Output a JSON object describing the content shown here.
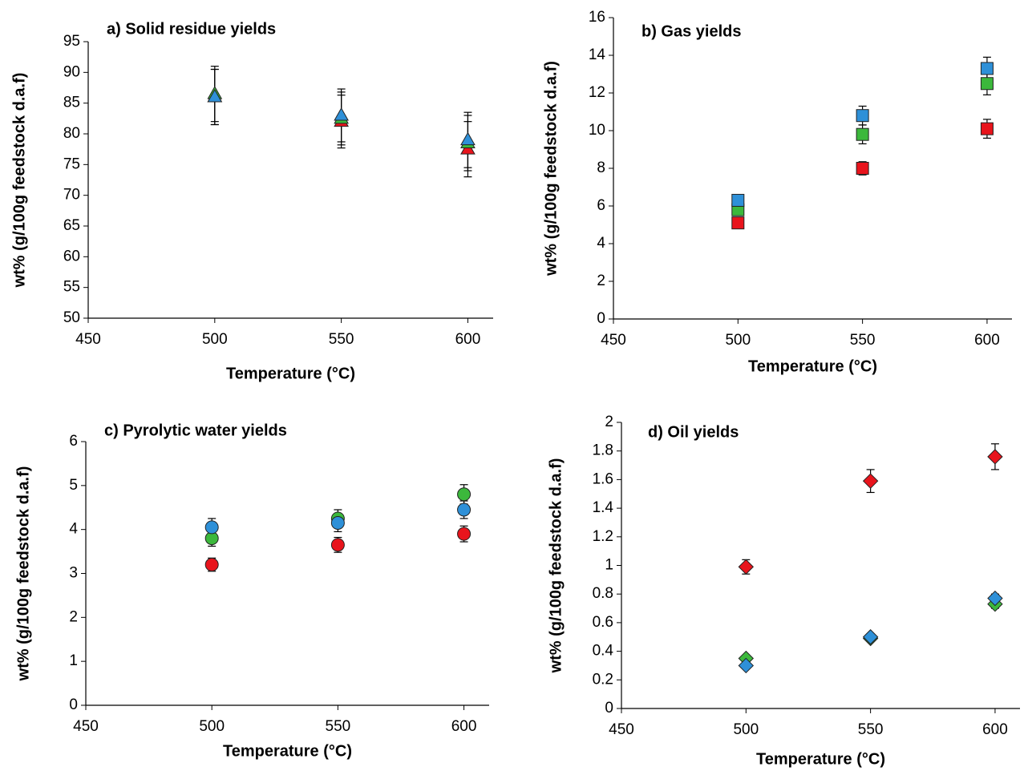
{
  "chart_data": [
    {
      "type": "scatter",
      "title": "a) Solid residue yields",
      "xlabel": "Temperature (°C)",
      "ylabel": "wt% (g/100g feedstock d.a.f)",
      "marker": "triangle",
      "x": [
        500,
        550,
        600
      ],
      "xlim": [
        450,
        610
      ],
      "xticks": [
        450,
        500,
        550,
        600
      ],
      "ylim": [
        50,
        95
      ],
      "yticks": [
        50,
        55,
        60,
        65,
        70,
        75,
        80,
        85,
        90,
        95
      ],
      "series": [
        {
          "color": "#e8141c",
          "values": [
            86,
            82,
            77.5
          ],
          "errors": [
            4.5,
            4.3,
            4.5
          ]
        },
        {
          "color": "#3cb83c",
          "values": [
            86.5,
            82.5,
            78.5
          ],
          "errors": [
            4.5,
            4.3,
            4.5
          ]
        },
        {
          "color": "#2e90d8",
          "values": [
            86,
            83,
            79
          ],
          "errors": [
            4.5,
            4.3,
            4.5
          ]
        }
      ]
    },
    {
      "type": "scatter",
      "title": "b) Gas yields",
      "xlabel": "Temperature (°C)",
      "ylabel": "wt% (g/100g feedstock d.a.f)",
      "marker": "square",
      "x": [
        500,
        550,
        600
      ],
      "xlim": [
        450,
        610
      ],
      "xticks": [
        450,
        500,
        550,
        600
      ],
      "ylim": [
        0,
        16
      ],
      "yticks": [
        0,
        2,
        4,
        6,
        8,
        10,
        12,
        14,
        16
      ],
      "series": [
        {
          "color": "#e8141c",
          "values": [
            5.1,
            8.0,
            10.1
          ],
          "errors": [
            0.2,
            0.35,
            0.5
          ]
        },
        {
          "color": "#3cb83c",
          "values": [
            5.8,
            9.8,
            12.5
          ],
          "errors": [
            0.3,
            0.5,
            0.6
          ]
        },
        {
          "color": "#2e90d8",
          "values": [
            6.3,
            10.8,
            13.3
          ],
          "errors": [
            0.3,
            0.5,
            0.6
          ]
        }
      ]
    },
    {
      "type": "scatter",
      "title": "c) Pyrolytic water yields",
      "xlabel": "Temperature (°C)",
      "ylabel": "wt% (g/100g feedstock d.a.f)",
      "marker": "circle",
      "x": [
        500,
        550,
        600
      ],
      "xlim": [
        450,
        610
      ],
      "xticks": [
        450,
        500,
        550,
        600
      ],
      "ylim": [
        0,
        6
      ],
      "yticks": [
        0,
        1,
        2,
        3,
        4,
        5,
        6
      ],
      "series": [
        {
          "color": "#e8141c",
          "values": [
            3.2,
            3.65,
            3.9
          ],
          "errors": [
            0.15,
            0.17,
            0.18
          ]
        },
        {
          "color": "#3cb83c",
          "values": [
            3.8,
            4.25,
            4.8
          ],
          "errors": [
            0.18,
            0.2,
            0.22
          ]
        },
        {
          "color": "#2e90d8",
          "values": [
            4.05,
            4.15,
            4.45
          ],
          "errors": [
            0.2,
            0.2,
            0.2
          ]
        }
      ]
    },
    {
      "type": "scatter",
      "title": "d) Oil yields",
      "xlabel": "Temperature (°C)",
      "ylabel": "wt% (g/100g feedstock d.a.f)",
      "marker": "diamond",
      "x": [
        500,
        550,
        600
      ],
      "xlim": [
        450,
        610
      ],
      "xticks": [
        450,
        500,
        550,
        600
      ],
      "ylim": [
        0,
        2
      ],
      "yticks": [
        0,
        0.2,
        0.4,
        0.6,
        0.8,
        1,
        1.2,
        1.4,
        1.6,
        1.8,
        2
      ],
      "series": [
        {
          "color": "#e8141c",
          "values": [
            0.99,
            1.59,
            1.76
          ],
          "errors": [
            0.05,
            0.08,
            0.09
          ]
        },
        {
          "color": "#3cb83c",
          "values": [
            0.35,
            0.49,
            0.73
          ],
          "errors": [
            0.02,
            0.02,
            0.03
          ]
        },
        {
          "color": "#2e90d8",
          "values": [
            0.3,
            0.5,
            0.77
          ],
          "errors": [
            0.02,
            0.02,
            0.03
          ]
        }
      ]
    }
  ]
}
